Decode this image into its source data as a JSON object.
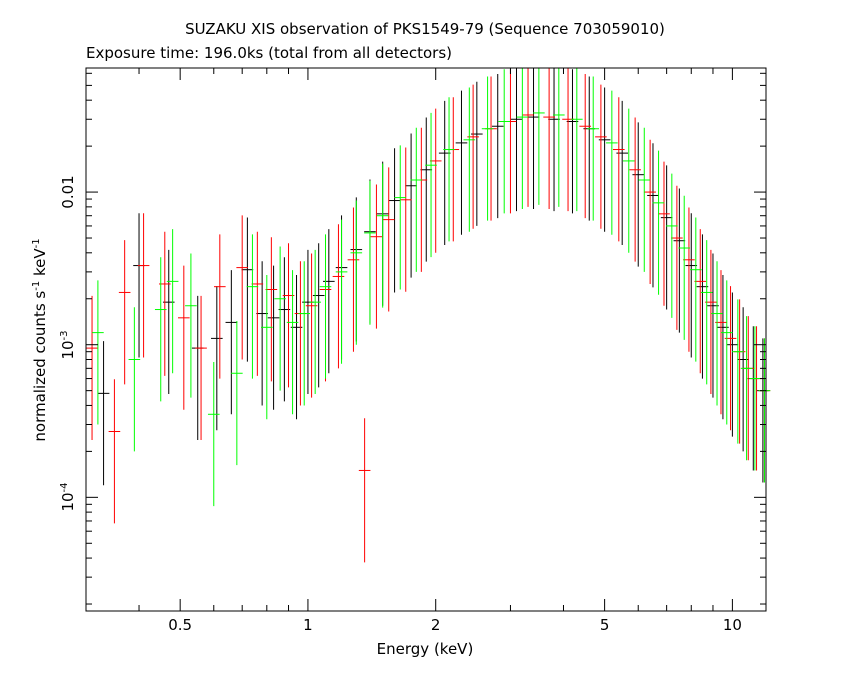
{
  "chart_data": {
    "type": "scatter",
    "title": "SUZAKU XIS observation of PKS1549-79 (Sequence 703059010)",
    "subtitle": "Exposure time: 196.0ks (total from all detectors)",
    "xlabel": "Energy (keV)",
    "ylabel_main": "normalized counts s",
    "ylabel_sup1": "-1",
    "ylabel_mid": " keV",
    "ylabel_sup2": "-1",
    "x_scale": "log",
    "y_scale": "log",
    "xlim": [
      0.3,
      12.0
    ],
    "ylim": [
      1.8e-05,
      0.065
    ],
    "x_ticks": [
      {
        "value": 0.5,
        "label": "0.5"
      },
      {
        "value": 1,
        "label": "1"
      },
      {
        "value": 2,
        "label": "2"
      },
      {
        "value": 5,
        "label": "5"
      },
      {
        "value": 10,
        "label": "10"
      }
    ],
    "y_ticks": [
      {
        "value": 0.0001,
        "base": "10",
        "exp": "-4"
      },
      {
        "value": 0.001,
        "base": "10",
        "exp": "-3"
      },
      {
        "value": 0.01,
        "label": "0.01"
      }
    ],
    "grid": false,
    "colors": {
      "black": "#000000",
      "red": "#ff0000",
      "green": "#00ff00"
    },
    "series": [
      {
        "color": "#000000",
        "points": [
          [
            0.33,
            0.00048
          ],
          [
            0.4,
            0.0033
          ],
          [
            0.47,
            0.0019
          ],
          [
            0.55,
            0.00095
          ],
          [
            0.61,
            0.0011
          ],
          [
            0.66,
            0.0014
          ],
          [
            0.72,
            0.0031
          ],
          [
            0.78,
            0.0016
          ],
          [
            0.83,
            0.0015
          ],
          [
            0.88,
            0.0017
          ],
          [
            0.94,
            0.0013
          ],
          [
            1.0,
            0.0019
          ],
          [
            1.06,
            0.0021
          ],
          [
            1.12,
            0.0026
          ],
          [
            1.2,
            0.0032
          ],
          [
            1.3,
            0.0042
          ],
          [
            1.4,
            0.0055
          ],
          [
            1.5,
            0.0072
          ],
          [
            1.6,
            0.0088
          ],
          [
            1.75,
            0.011
          ],
          [
            1.9,
            0.014
          ],
          [
            2.1,
            0.018
          ],
          [
            2.3,
            0.021
          ],
          [
            2.5,
            0.024
          ],
          [
            2.8,
            0.027
          ],
          [
            3.1,
            0.03
          ],
          [
            3.4,
            0.031
          ],
          [
            3.8,
            0.03
          ],
          [
            4.2,
            0.029
          ],
          [
            4.6,
            0.026
          ],
          [
            5.0,
            0.022
          ],
          [
            5.5,
            0.018
          ],
          [
            6.0,
            0.013
          ],
          [
            6.5,
            0.0095
          ],
          [
            7.0,
            0.0068
          ],
          [
            7.5,
            0.0048
          ],
          [
            8.0,
            0.0033
          ],
          [
            8.5,
            0.0024
          ],
          [
            9.0,
            0.0018
          ],
          [
            9.5,
            0.0013
          ],
          [
            10.0,
            0.001
          ],
          [
            10.6,
            0.0008
          ],
          [
            11.2,
            0.0006
          ],
          [
            11.8,
            0.0005
          ]
        ]
      },
      {
        "color": "#ff0000",
        "points": [
          [
            0.31,
            0.00095
          ],
          [
            0.35,
            0.00027
          ],
          [
            0.37,
            0.0022
          ],
          [
            0.41,
            0.0033
          ],
          [
            0.46,
            0.0025
          ],
          [
            0.51,
            0.0015
          ],
          [
            0.56,
            0.00095
          ],
          [
            0.62,
            0.0024
          ],
          [
            0.7,
            0.0032
          ],
          [
            0.76,
            0.0025
          ],
          [
            0.82,
            0.0023
          ],
          [
            0.9,
            0.0021
          ],
          [
            0.96,
            0.0016
          ],
          [
            1.02,
            0.0018
          ],
          [
            1.1,
            0.0023
          ],
          [
            1.18,
            0.0028
          ],
          [
            1.28,
            0.0036
          ],
          [
            1.36,
            0.00015
          ],
          [
            1.45,
            0.0051
          ],
          [
            1.55,
            0.0066
          ],
          [
            1.7,
            0.0089
          ],
          [
            1.85,
            0.012
          ],
          [
            2.0,
            0.016
          ],
          [
            2.2,
            0.019
          ],
          [
            2.45,
            0.023
          ],
          [
            2.7,
            0.026
          ],
          [
            3.0,
            0.029
          ],
          [
            3.3,
            0.032
          ],
          [
            3.7,
            0.031
          ],
          [
            4.1,
            0.03
          ],
          [
            4.5,
            0.027
          ],
          [
            4.9,
            0.023
          ],
          [
            5.4,
            0.019
          ],
          [
            5.9,
            0.014
          ],
          [
            6.4,
            0.01
          ],
          [
            6.9,
            0.0072
          ],
          [
            7.4,
            0.005
          ],
          [
            7.9,
            0.0036
          ],
          [
            8.4,
            0.0026
          ],
          [
            8.9,
            0.0019
          ],
          [
            9.4,
            0.0014
          ],
          [
            9.9,
            0.0011
          ],
          [
            10.4,
            0.0009
          ],
          [
            10.9,
            0.0007
          ],
          [
            11.4,
            0.0006
          ],
          [
            11.9,
            0.0005
          ]
        ]
      },
      {
        "color": "#00ff00",
        "points": [
          [
            0.32,
            0.0012
          ],
          [
            0.39,
            0.0008
          ],
          [
            0.45,
            0.0017
          ],
          [
            0.48,
            0.0026
          ],
          [
            0.53,
            0.0018
          ],
          [
            0.6,
            0.00035
          ],
          [
            0.68,
            0.00065
          ],
          [
            0.74,
            0.0024
          ],
          [
            0.8,
            0.0013
          ],
          [
            0.86,
            0.002
          ],
          [
            0.92,
            0.0014
          ],
          [
            0.98,
            0.0016
          ],
          [
            1.04,
            0.0019
          ],
          [
            1.1,
            0.0024
          ],
          [
            1.2,
            0.003
          ],
          [
            1.3,
            0.004
          ],
          [
            1.4,
            0.0054
          ],
          [
            1.5,
            0.007
          ],
          [
            1.65,
            0.0092
          ],
          [
            1.8,
            0.012
          ],
          [
            1.95,
            0.015
          ],
          [
            2.15,
            0.019
          ],
          [
            2.4,
            0.022
          ],
          [
            2.65,
            0.026
          ],
          [
            2.9,
            0.029
          ],
          [
            3.2,
            0.031
          ],
          [
            3.5,
            0.033
          ],
          [
            3.9,
            0.032
          ],
          [
            4.3,
            0.03
          ],
          [
            4.7,
            0.026
          ],
          [
            5.2,
            0.021
          ],
          [
            5.7,
            0.016
          ],
          [
            6.2,
            0.012
          ],
          [
            6.7,
            0.0085
          ],
          [
            7.2,
            0.006
          ],
          [
            7.7,
            0.0043
          ],
          [
            8.2,
            0.0031
          ],
          [
            8.7,
            0.0022
          ],
          [
            9.2,
            0.0016
          ],
          [
            9.7,
            0.0012
          ],
          [
            10.3,
            0.0009
          ],
          [
            10.8,
            0.0007
          ],
          [
            11.3,
            0.0006
          ],
          [
            11.9,
            0.0005
          ]
        ]
      }
    ]
  }
}
